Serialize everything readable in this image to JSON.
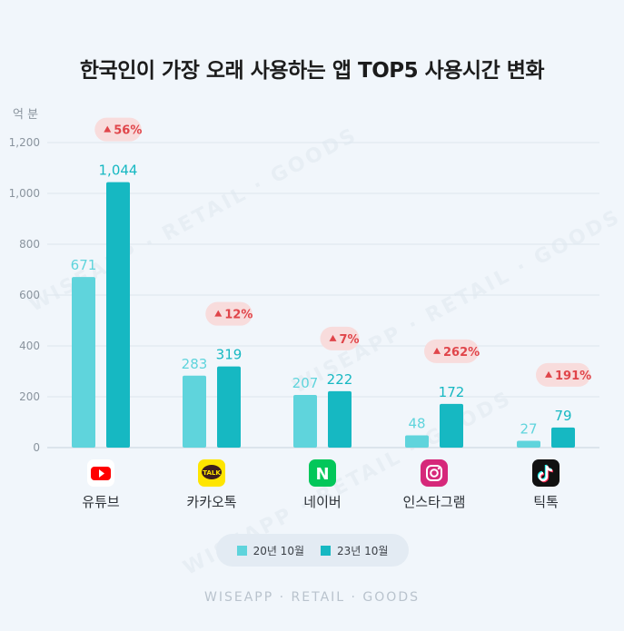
{
  "title": "한국인이 가장 오래 사용하는 앱 TOP5 사용시간 변화",
  "watermark": "WISEAPP · RETAIL · GOODS",
  "footer": "WISEAPP · RETAIL · GOODS",
  "colors": {
    "series_2020": "#5fd4dc",
    "series_2023": "#16b8c2",
    "badge_bg": "#f8dcdc",
    "badge_text": "#e0454a"
  },
  "chart_data": {
    "type": "bar",
    "ylabel": "억 분",
    "ylim": [
      0,
      1200
    ],
    "yticks": [
      "0",
      "200",
      "400",
      "600",
      "800",
      "1,000",
      "1,200"
    ],
    "categories": [
      "유튜브",
      "카카오톡",
      "네이버",
      "인스타그램",
      "틱톡"
    ],
    "icons": [
      "youtube-icon",
      "kakaotalk-icon",
      "naver-icon",
      "instagram-icon",
      "tiktok-icon"
    ],
    "kakao_icon_text": "TALK",
    "naver_icon_text": "N",
    "series": [
      {
        "name": "20년 10월",
        "values": [
          671,
          283,
          207,
          48,
          27
        ],
        "labels": [
          "671",
          "283",
          "207",
          "48",
          "27"
        ]
      },
      {
        "name": "23년 10월",
        "values": [
          1044,
          319,
          222,
          172,
          79
        ],
        "labels": [
          "1,044",
          "319",
          "222",
          "172",
          "79"
        ]
      }
    ],
    "changes": [
      "56%",
      "12%",
      "7%",
      "262%",
      "191%"
    ],
    "legend_position": "bottom",
    "grid": true
  }
}
